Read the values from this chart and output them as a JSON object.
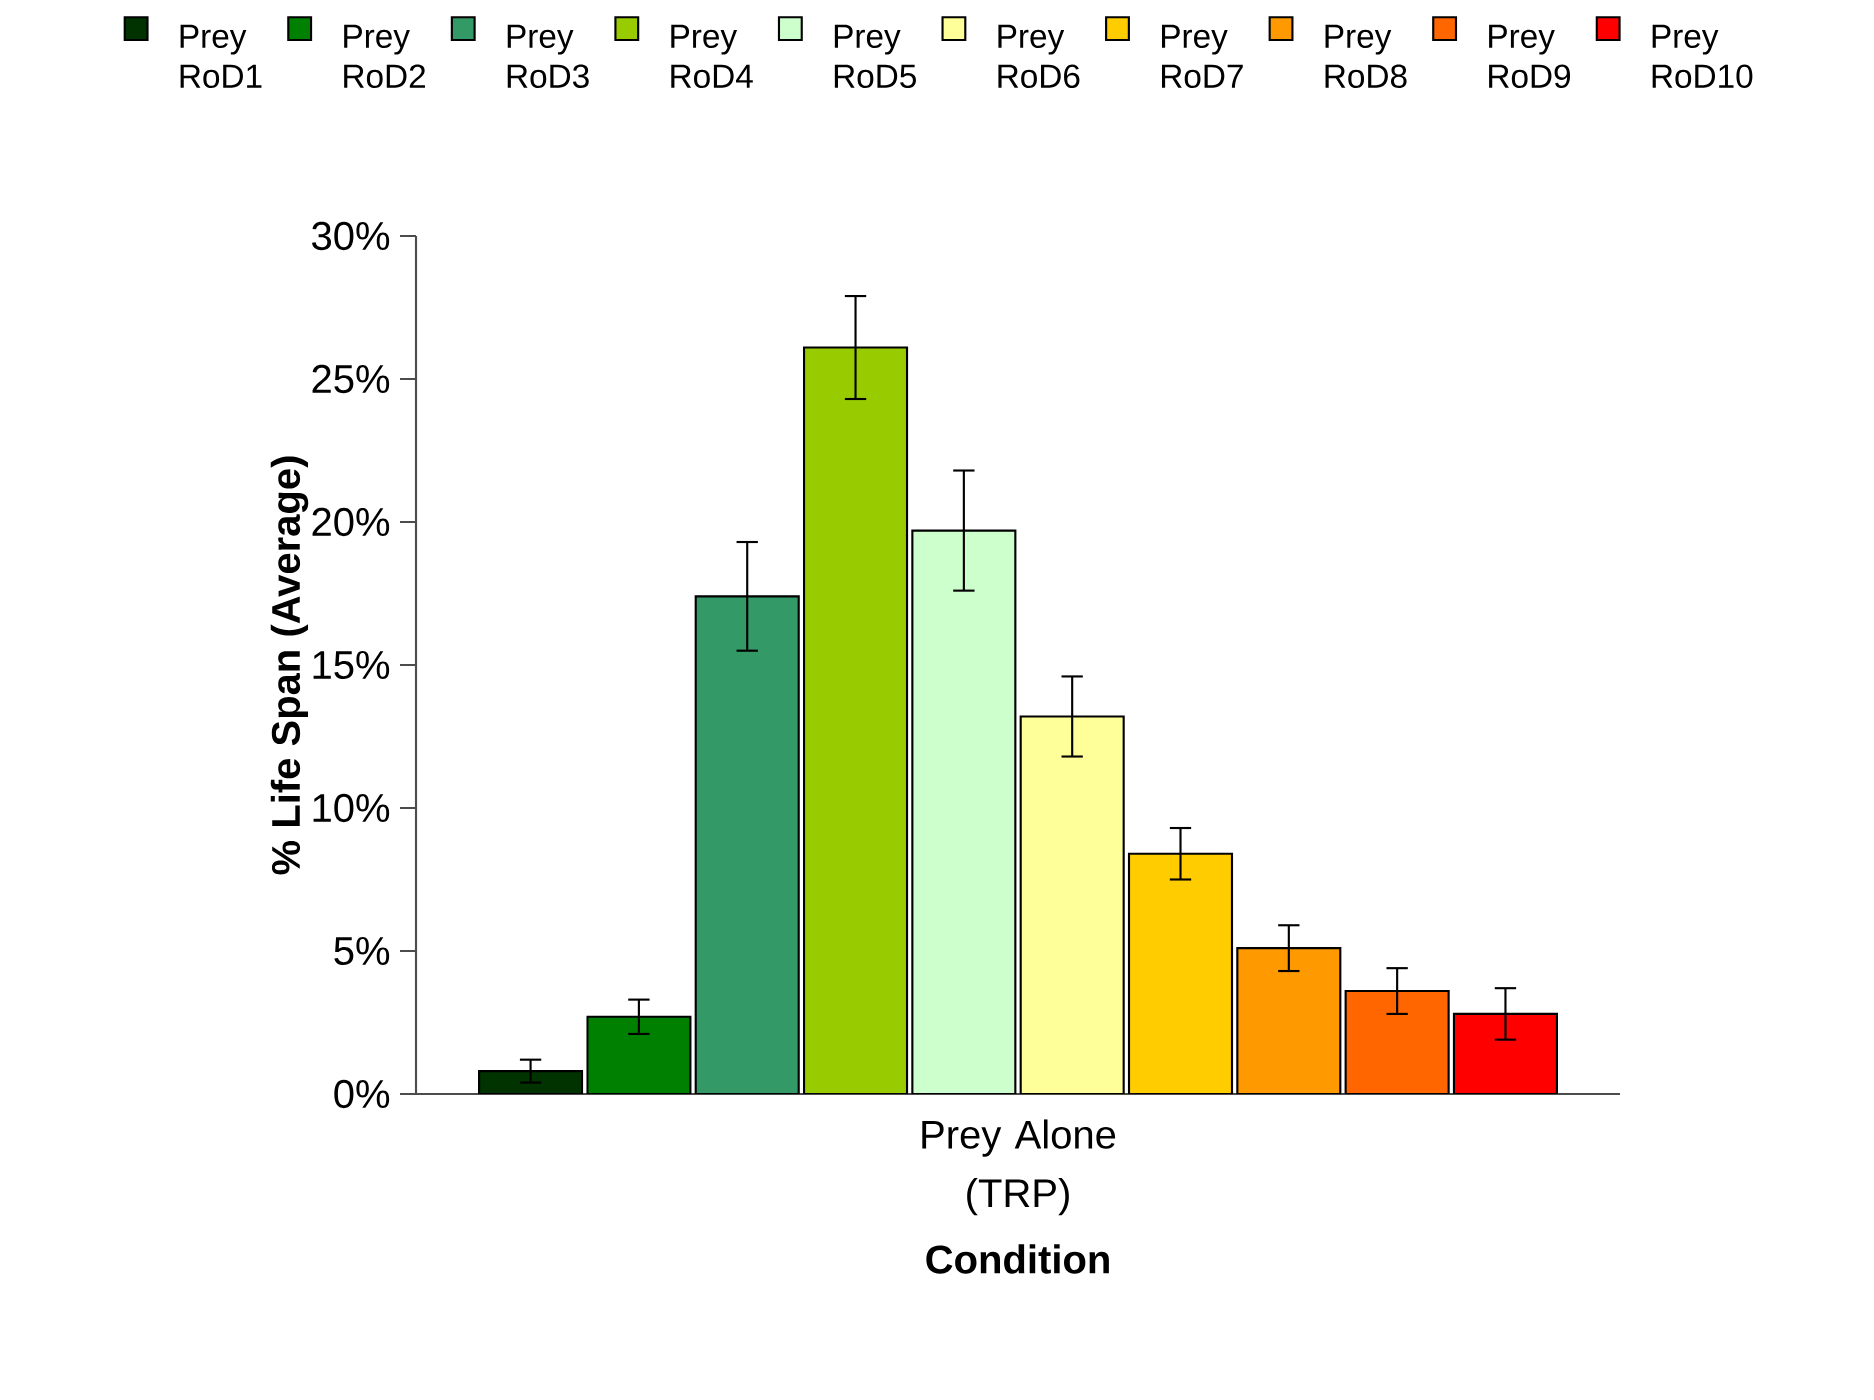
{
  "chart_data": {
    "type": "bar",
    "xlabel": "Condition",
    "ylabel": "% Life Span (Average)",
    "categories": [
      "Prey Alone (TRP)"
    ],
    "ylim": [
      0,
      30
    ],
    "yticks": [
      {
        "value": 0,
        "label": "0%"
      },
      {
        "value": 5,
        "label": "5%"
      },
      {
        "value": 10,
        "label": "10%"
      },
      {
        "value": 15,
        "label": "15%"
      },
      {
        "value": 20,
        "label": "20%"
      },
      {
        "value": 25,
        "label": "25%"
      },
      {
        "value": 30,
        "label": "30%"
      }
    ],
    "legend": "top",
    "series": [
      {
        "name": "Prey RoD1",
        "color": "#003300",
        "values": [
          0.8
        ],
        "errors": [
          0.4
        ]
      },
      {
        "name": "Prey RoD2",
        "color": "#008000",
        "values": [
          2.7
        ],
        "errors": [
          0.6
        ]
      },
      {
        "name": "Prey RoD3",
        "color": "#339966",
        "values": [
          17.4
        ],
        "errors": [
          1.9
        ]
      },
      {
        "name": "Prey RoD4",
        "color": "#99cc00",
        "values": [
          26.1
        ],
        "errors": [
          1.8
        ]
      },
      {
        "name": "Prey RoD5",
        "color": "#ccffcc",
        "values": [
          19.7
        ],
        "errors": [
          2.1
        ]
      },
      {
        "name": "Prey RoD6",
        "color": "#ffff99",
        "values": [
          13.2
        ],
        "errors": [
          1.4
        ]
      },
      {
        "name": "Prey RoD7",
        "color": "#ffcc00",
        "values": [
          8.4
        ],
        "errors": [
          0.9
        ]
      },
      {
        "name": "Prey RoD8",
        "color": "#ff9900",
        "values": [
          5.1
        ],
        "errors": [
          0.8
        ]
      },
      {
        "name": "Prey RoD9",
        "color": "#ff6600",
        "values": [
          3.6
        ],
        "errors": [
          0.8
        ]
      },
      {
        "name": "Prey RoD10",
        "color": "#ff0000",
        "values": [
          2.8
        ],
        "errors": [
          0.9
        ]
      }
    ]
  }
}
